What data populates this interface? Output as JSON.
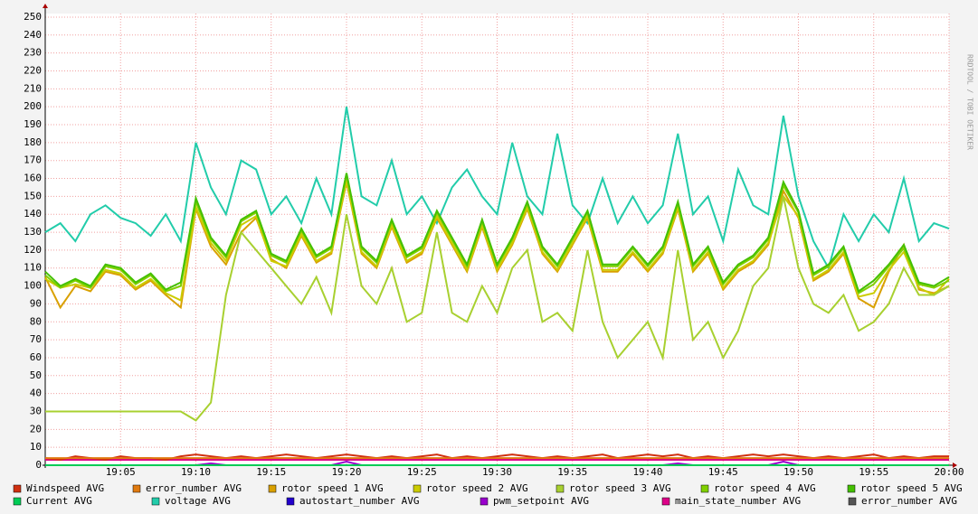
{
  "chart_data": {
    "type": "line",
    "watermark": "RRDTOOL / TOBI OETIKER",
    "x": [
      "19:00",
      "19:01",
      "19:02",
      "19:03",
      "19:04",
      "19:05",
      "19:06",
      "19:07",
      "19:08",
      "19:09",
      "19:10",
      "19:11",
      "19:12",
      "19:13",
      "19:14",
      "19:15",
      "19:16",
      "19:17",
      "19:18",
      "19:19",
      "19:20",
      "19:21",
      "19:22",
      "19:23",
      "19:24",
      "19:25",
      "19:26",
      "19:27",
      "19:28",
      "19:29",
      "19:30",
      "19:31",
      "19:32",
      "19:33",
      "19:34",
      "19:35",
      "19:36",
      "19:37",
      "19:38",
      "19:39",
      "19:40",
      "19:41",
      "19:42",
      "19:43",
      "19:44",
      "19:45",
      "19:46",
      "19:47",
      "19:48",
      "19:49",
      "19:50",
      "19:51",
      "19:52",
      "19:53",
      "19:54",
      "19:55",
      "19:56",
      "19:57",
      "19:58",
      "19:59",
      "20:00"
    ],
    "xlim": [
      "19:00",
      "20:00"
    ],
    "xticks": [
      "19:05",
      "19:10",
      "19:15",
      "19:20",
      "19:25",
      "19:30",
      "19:35",
      "19:40",
      "19:45",
      "19:50",
      "19:55",
      "20:00"
    ],
    "ylim": [
      0,
      252
    ],
    "yticks": [
      0,
      10,
      20,
      30,
      40,
      50,
      60,
      70,
      80,
      90,
      100,
      110,
      120,
      130,
      140,
      150,
      160,
      170,
      180,
      190,
      200,
      210,
      220,
      230,
      240,
      250
    ],
    "grid": true,
    "series": [
      {
        "name": "Windspeed AVG",
        "color": "#d03010",
        "values": [
          4,
          3,
          5,
          4,
          3,
          5,
          4,
          4,
          3,
          5,
          6,
          5,
          4,
          5,
          4,
          5,
          6,
          5,
          4,
          5,
          6,
          5,
          4,
          5,
          4,
          5,
          6,
          4,
          5,
          4,
          5,
          6,
          5,
          4,
          5,
          4,
          5,
          6,
          4,
          5,
          6,
          5,
          6,
          4,
          5,
          4,
          5,
          6,
          5,
          6,
          5,
          4,
          5,
          4,
          5,
          6,
          4,
          5,
          4,
          5,
          5
        ]
      },
      {
        "name": "error_number AVG",
        "color": "#e07a10",
        "values": [
          4,
          4,
          4,
          4,
          4,
          4,
          4,
          4,
          4,
          4,
          4,
          4,
          4,
          4,
          4,
          4,
          4,
          4,
          4,
          4,
          4,
          4,
          4,
          4,
          4,
          4,
          4,
          4,
          4,
          4,
          4,
          4,
          4,
          4,
          4,
          4,
          4,
          4,
          4,
          4,
          4,
          4,
          4,
          4,
          4,
          4,
          4,
          4,
          4,
          4,
          4,
          4,
          4,
          4,
          4,
          4,
          4,
          4,
          4,
          4,
          4
        ]
      },
      {
        "name": "rotor speed 1 AVG",
        "color": "#d9a000",
        "values": [
          105,
          88,
          100,
          97,
          108,
          106,
          98,
          103,
          95,
          88,
          143,
          122,
          112,
          130,
          138,
          115,
          110,
          128,
          113,
          118,
          158,
          118,
          110,
          133,
          113,
          118,
          138,
          123,
          108,
          133,
          108,
          123,
          143,
          118,
          108,
          123,
          138,
          108,
          108,
          118,
          108,
          118,
          143,
          108,
          118,
          98,
          108,
          113,
          123,
          153,
          138,
          103,
          108,
          118,
          93,
          88,
          108,
          123,
          98,
          96,
          100
        ]
      },
      {
        "name": "rotor speed 2 AVG",
        "color": "#cccc00",
        "values": [
          104,
          99,
          101,
          99,
          109,
          107,
          99,
          104,
          96,
          92,
          144,
          124,
          114,
          134,
          139,
          114,
          111,
          129,
          114,
          119,
          159,
          119,
          111,
          134,
          114,
          119,
          139,
          124,
          109,
          134,
          109,
          124,
          144,
          119,
          109,
          124,
          139,
          109,
          109,
          119,
          109,
          119,
          144,
          109,
          119,
          99,
          109,
          114,
          124,
          150,
          139,
          104,
          109,
          119,
          94,
          96,
          109,
          119,
          99,
          95,
          104
        ]
      },
      {
        "name": "rotor speed 3 AVG",
        "color": "#a8d030",
        "values": [
          30,
          30,
          30,
          30,
          30,
          30,
          30,
          30,
          30,
          30,
          25,
          35,
          95,
          130,
          120,
          110,
          100,
          90,
          105,
          85,
          140,
          100,
          90,
          110,
          80,
          85,
          130,
          85,
          80,
          100,
          85,
          110,
          120,
          80,
          85,
          75,
          120,
          80,
          60,
          70,
          80,
          60,
          120,
          70,
          80,
          60,
          75,
          100,
          110,
          150,
          110,
          90,
          85,
          95,
          75,
          80,
          90,
          110,
          95,
          95,
          100
        ]
      },
      {
        "name": "rotor speed 4 AVG",
        "color": "#80d000",
        "values": [
          106,
          99,
          103,
          99,
          111,
          109,
          101,
          106,
          97,
          100,
          147,
          126,
          116,
          136,
          141,
          117,
          113,
          131,
          116,
          121,
          162,
          121,
          113,
          136,
          116,
          121,
          141,
          126,
          111,
          136,
          111,
          126,
          146,
          121,
          111,
          126,
          141,
          111,
          111,
          121,
          111,
          121,
          146,
          111,
          121,
          101,
          111,
          116,
          126,
          156,
          141,
          106,
          111,
          121,
          96,
          101,
          111,
          121,
          101,
          99,
          103
        ]
      },
      {
        "name": "rotor speed 5 AVG",
        "color": "#44c000",
        "values": [
          108,
          100,
          104,
          100,
          112,
          110,
          102,
          107,
          98,
          102,
          149,
          127,
          117,
          137,
          142,
          118,
          114,
          132,
          117,
          122,
          163,
          122,
          114,
          137,
          117,
          122,
          142,
          127,
          112,
          137,
          112,
          127,
          147,
          122,
          112,
          127,
          142,
          112,
          112,
          122,
          112,
          122,
          147,
          112,
          122,
          102,
          112,
          117,
          127,
          158,
          142,
          107,
          112,
          122,
          97,
          103,
          112,
          123,
          102,
          100,
          105
        ]
      },
      {
        "name": "Current AVG",
        "color": "#00cc55",
        "values": [
          0,
          0,
          0,
          0,
          0,
          0,
          0,
          0,
          0,
          0,
          0,
          0,
          0,
          0,
          0,
          0,
          0,
          0,
          0,
          0,
          0,
          0,
          0,
          0,
          0,
          0,
          0,
          0,
          0,
          0,
          0,
          0,
          0,
          0,
          0,
          0,
          0,
          0,
          0,
          0,
          0,
          0,
          0,
          0,
          0,
          0,
          0,
          0,
          0,
          0,
          0,
          0,
          0,
          0,
          0,
          0,
          0,
          0,
          0,
          0,
          0
        ]
      },
      {
        "name": "voltage AVG",
        "color": "#22ccaa",
        "values": [
          130,
          135,
          125,
          140,
          145,
          138,
          135,
          128,
          140,
          125,
          180,
          155,
          140,
          170,
          165,
          140,
          150,
          135,
          160,
          140,
          200,
          150,
          145,
          170,
          140,
          150,
          135,
          155,
          165,
          150,
          140,
          180,
          150,
          140,
          185,
          145,
          135,
          160,
          135,
          150,
          135,
          145,
          185,
          140,
          150,
          125,
          165,
          145,
          140,
          195,
          150,
          125,
          110,
          140,
          125,
          140,
          130,
          160,
          125,
          135,
          132
        ]
      },
      {
        "name": "autostart_number AVG",
        "color": "#2200cc",
        "values": [
          0,
          0,
          0,
          0,
          0,
          0,
          0,
          0,
          0,
          0,
          0,
          0,
          0,
          0,
          0,
          0,
          0,
          0,
          0,
          0,
          0,
          0,
          0,
          0,
          0,
          0,
          0,
          0,
          0,
          0,
          0,
          0,
          0,
          0,
          0,
          0,
          0,
          0,
          0,
          0,
          0,
          0,
          0,
          0,
          0,
          0,
          0,
          0,
          0,
          0,
          0,
          0,
          0,
          0,
          0,
          0,
          0,
          0,
          0,
          0,
          0
        ]
      },
      {
        "name": "pwm_setpoint AVG",
        "color": "#9900cc",
        "values": [
          0,
          0,
          0,
          0,
          0,
          0,
          0,
          0,
          0,
          0,
          0,
          1,
          0,
          0,
          0,
          0,
          0,
          0,
          0,
          0,
          2,
          0,
          0,
          0,
          0,
          0,
          0,
          0,
          0,
          0,
          0,
          0,
          0,
          0,
          0,
          0,
          0,
          0,
          0,
          0,
          0,
          0,
          1,
          0,
          0,
          0,
          0,
          0,
          0,
          2,
          0,
          0,
          0,
          0,
          0,
          0,
          0,
          0,
          0,
          0,
          0
        ]
      },
      {
        "name": "main_state_number AVG",
        "color": "#dd0088",
        "values": [
          3,
          3,
          3,
          3,
          3,
          3,
          3,
          3,
          3,
          3,
          3,
          3,
          3,
          3,
          3,
          3,
          3,
          3,
          3,
          3,
          3,
          3,
          3,
          3,
          3,
          3,
          3,
          3,
          3,
          3,
          3,
          3,
          3,
          3,
          3,
          3,
          3,
          3,
          3,
          3,
          3,
          3,
          3,
          3,
          3,
          3,
          3,
          3,
          3,
          3,
          3,
          3,
          3,
          3,
          3,
          3,
          3,
          3,
          3,
          3,
          3
        ]
      },
      {
        "name": "error_number AVG",
        "color": "#555555",
        "values": [
          0,
          0,
          0,
          0,
          0,
          0,
          0,
          0,
          0,
          0,
          0,
          0,
          0,
          0,
          0,
          0,
          0,
          0,
          0,
          0,
          0,
          0,
          0,
          0,
          0,
          0,
          0,
          0,
          0,
          0,
          0,
          0,
          0,
          0,
          0,
          0,
          0,
          0,
          0,
          0,
          0,
          0,
          0,
          0,
          0,
          0,
          0,
          0,
          0,
          0,
          0,
          0,
          0,
          0,
          0,
          0,
          0,
          0,
          0,
          0,
          0
        ]
      }
    ]
  }
}
